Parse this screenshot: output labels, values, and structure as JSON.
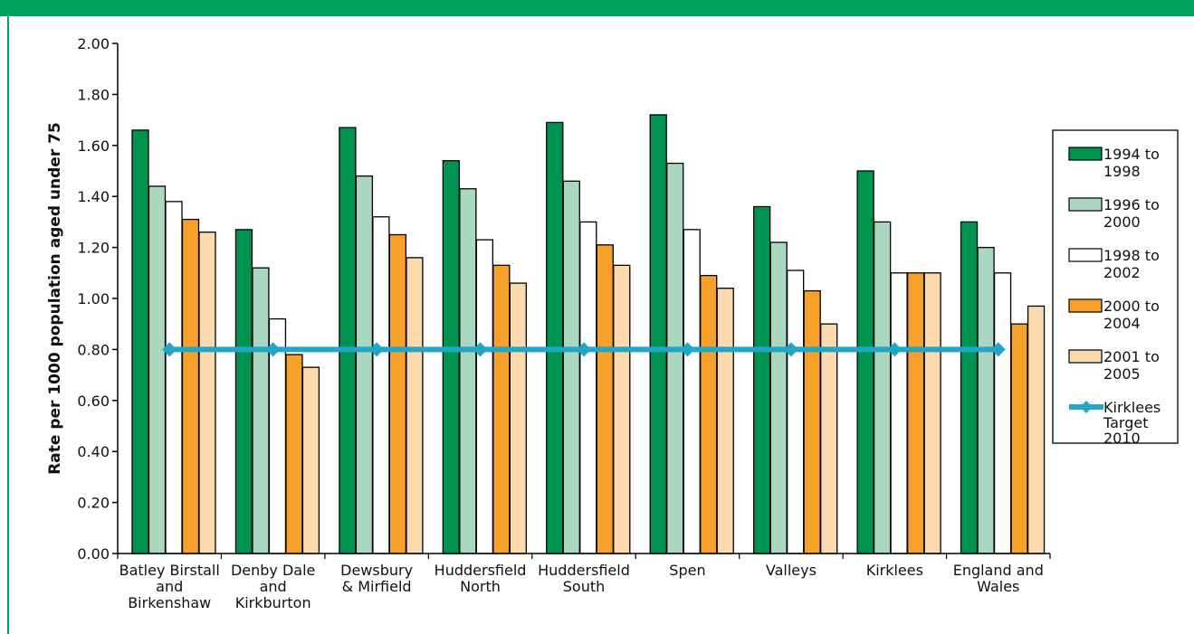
{
  "chart_data": {
    "type": "bar",
    "title": "",
    "xlabel": "",
    "ylabel": "Rate per 1000 population aged under 75",
    "ylim": [
      0,
      2.0
    ],
    "yticks": [
      "0.00",
      "0.20",
      "0.40",
      "0.60",
      "0.80",
      "1.00",
      "1.20",
      "1.40",
      "1.60",
      "1.80",
      "2.00"
    ],
    "categories": [
      [
        "Batley Birstall",
        "and",
        "Birkenshaw"
      ],
      [
        "Denby Dale",
        "and",
        "Kirkburton"
      ],
      [
        "Dewsbury",
        "& Mirfield"
      ],
      [
        "Huddersfield",
        "North"
      ],
      [
        "Huddersfield",
        "South"
      ],
      [
        "Spen"
      ],
      [
        "Valleys"
      ],
      [
        "Kirklees"
      ],
      [
        "England and",
        "Wales"
      ]
    ],
    "series": [
      {
        "name": [
          "1994 to",
          "1998"
        ],
        "color": "#00934f",
        "values": [
          1.66,
          1.27,
          1.67,
          1.54,
          1.69,
          1.72,
          1.36,
          1.5,
          1.3
        ]
      },
      {
        "name": [
          "1996 to",
          "2000"
        ],
        "color": "#a9d7bf",
        "values": [
          1.44,
          1.12,
          1.48,
          1.43,
          1.46,
          1.53,
          1.22,
          1.3,
          1.2
        ]
      },
      {
        "name": [
          "1998 to",
          "2002"
        ],
        "color": "#ffffff",
        "values": [
          1.38,
          0.92,
          1.32,
          1.23,
          1.3,
          1.27,
          1.11,
          1.1,
          1.1
        ]
      },
      {
        "name": [
          "2000 to",
          "2004"
        ],
        "color": "#f7a12b",
        "values": [
          1.31,
          0.78,
          1.25,
          1.13,
          1.21,
          1.09,
          1.03,
          1.1,
          0.9
        ]
      },
      {
        "name": [
          "2001 to",
          "2005"
        ],
        "color": "#fdd9ae",
        "values": [
          1.26,
          0.73,
          1.16,
          1.06,
          1.13,
          1.04,
          0.9,
          1.1,
          0.97
        ]
      }
    ],
    "target": {
      "name": [
        "Kirklees",
        "Target",
        "2010"
      ],
      "color": "#1ea7c9",
      "value": 0.8
    },
    "grid": false,
    "legend": "right"
  }
}
